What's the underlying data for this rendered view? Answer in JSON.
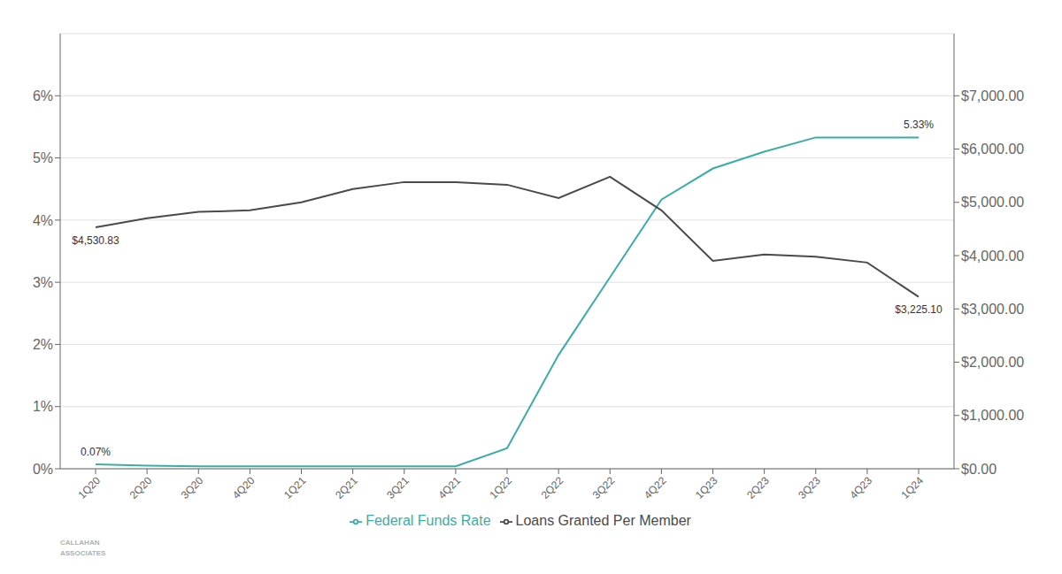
{
  "chart_data": {
    "type": "line",
    "categories": [
      "1Q20",
      "2Q20",
      "3Q20",
      "4Q20",
      "1Q21",
      "2Q21",
      "3Q21",
      "4Q21",
      "1Q22",
      "2Q22",
      "3Q22",
      "4Q22",
      "1Q23",
      "2Q23",
      "3Q23",
      "4Q23",
      "1Q24"
    ],
    "series": [
      {
        "name": "Federal Funds Rate",
        "color": "#3AADA8",
        "values": [
          0.0007,
          0.0005,
          0.0004,
          0.0004,
          0.0004,
          0.0004,
          0.0004,
          0.0004,
          0.0033,
          0.0183,
          0.0308,
          0.0433,
          0.0483,
          0.051,
          0.0533,
          0.0533,
          0.0533
        ]
      },
      {
        "name": "Loans Granted Per Member",
        "color": "#4a4a4a",
        "axis": "y2",
        "values": [
          4530.83,
          4700,
          4820,
          4850,
          5000,
          5250,
          5380,
          5380,
          5330,
          5080,
          5480,
          4850,
          3900,
          4020,
          3980,
          3870,
          3225.1
        ]
      }
    ],
    "ylim": [
      0.0,
      0.07
    ],
    "yticks": [
      {
        "value": 0.0,
        "label": "0%"
      },
      {
        "value": 0.01,
        "label": "1%"
      },
      {
        "value": 0.02,
        "label": "2%"
      },
      {
        "value": 0.03,
        "label": "3%"
      },
      {
        "value": 0.04,
        "label": "4%"
      },
      {
        "value": 0.05,
        "label": "5%"
      },
      {
        "value": 0.06,
        "label": "6%"
      }
    ],
    "y2lim": [
      0,
      8166.67
    ],
    "y2ticks": [
      {
        "value": 0,
        "label": "$0.00"
      },
      {
        "value": 1000,
        "label": "$1,000.00"
      },
      {
        "value": 2000,
        "label": "$2,000.00"
      },
      {
        "value": 3000,
        "label": "$3,000.00"
      },
      {
        "value": 4000,
        "label": "$4,000.00"
      },
      {
        "value": 5000,
        "label": "$5,000.00"
      },
      {
        "value": 6000,
        "label": "$6,000.00"
      },
      {
        "value": 7000,
        "label": "$7,000.00"
      }
    ],
    "annotations": [
      "0.07%",
      "5.33%",
      "$4,530.83",
      "$3,225.10",
      "CALLAHAN\nASSOCIATES"
    ],
    "grid": true,
    "legend": "bottom"
  }
}
